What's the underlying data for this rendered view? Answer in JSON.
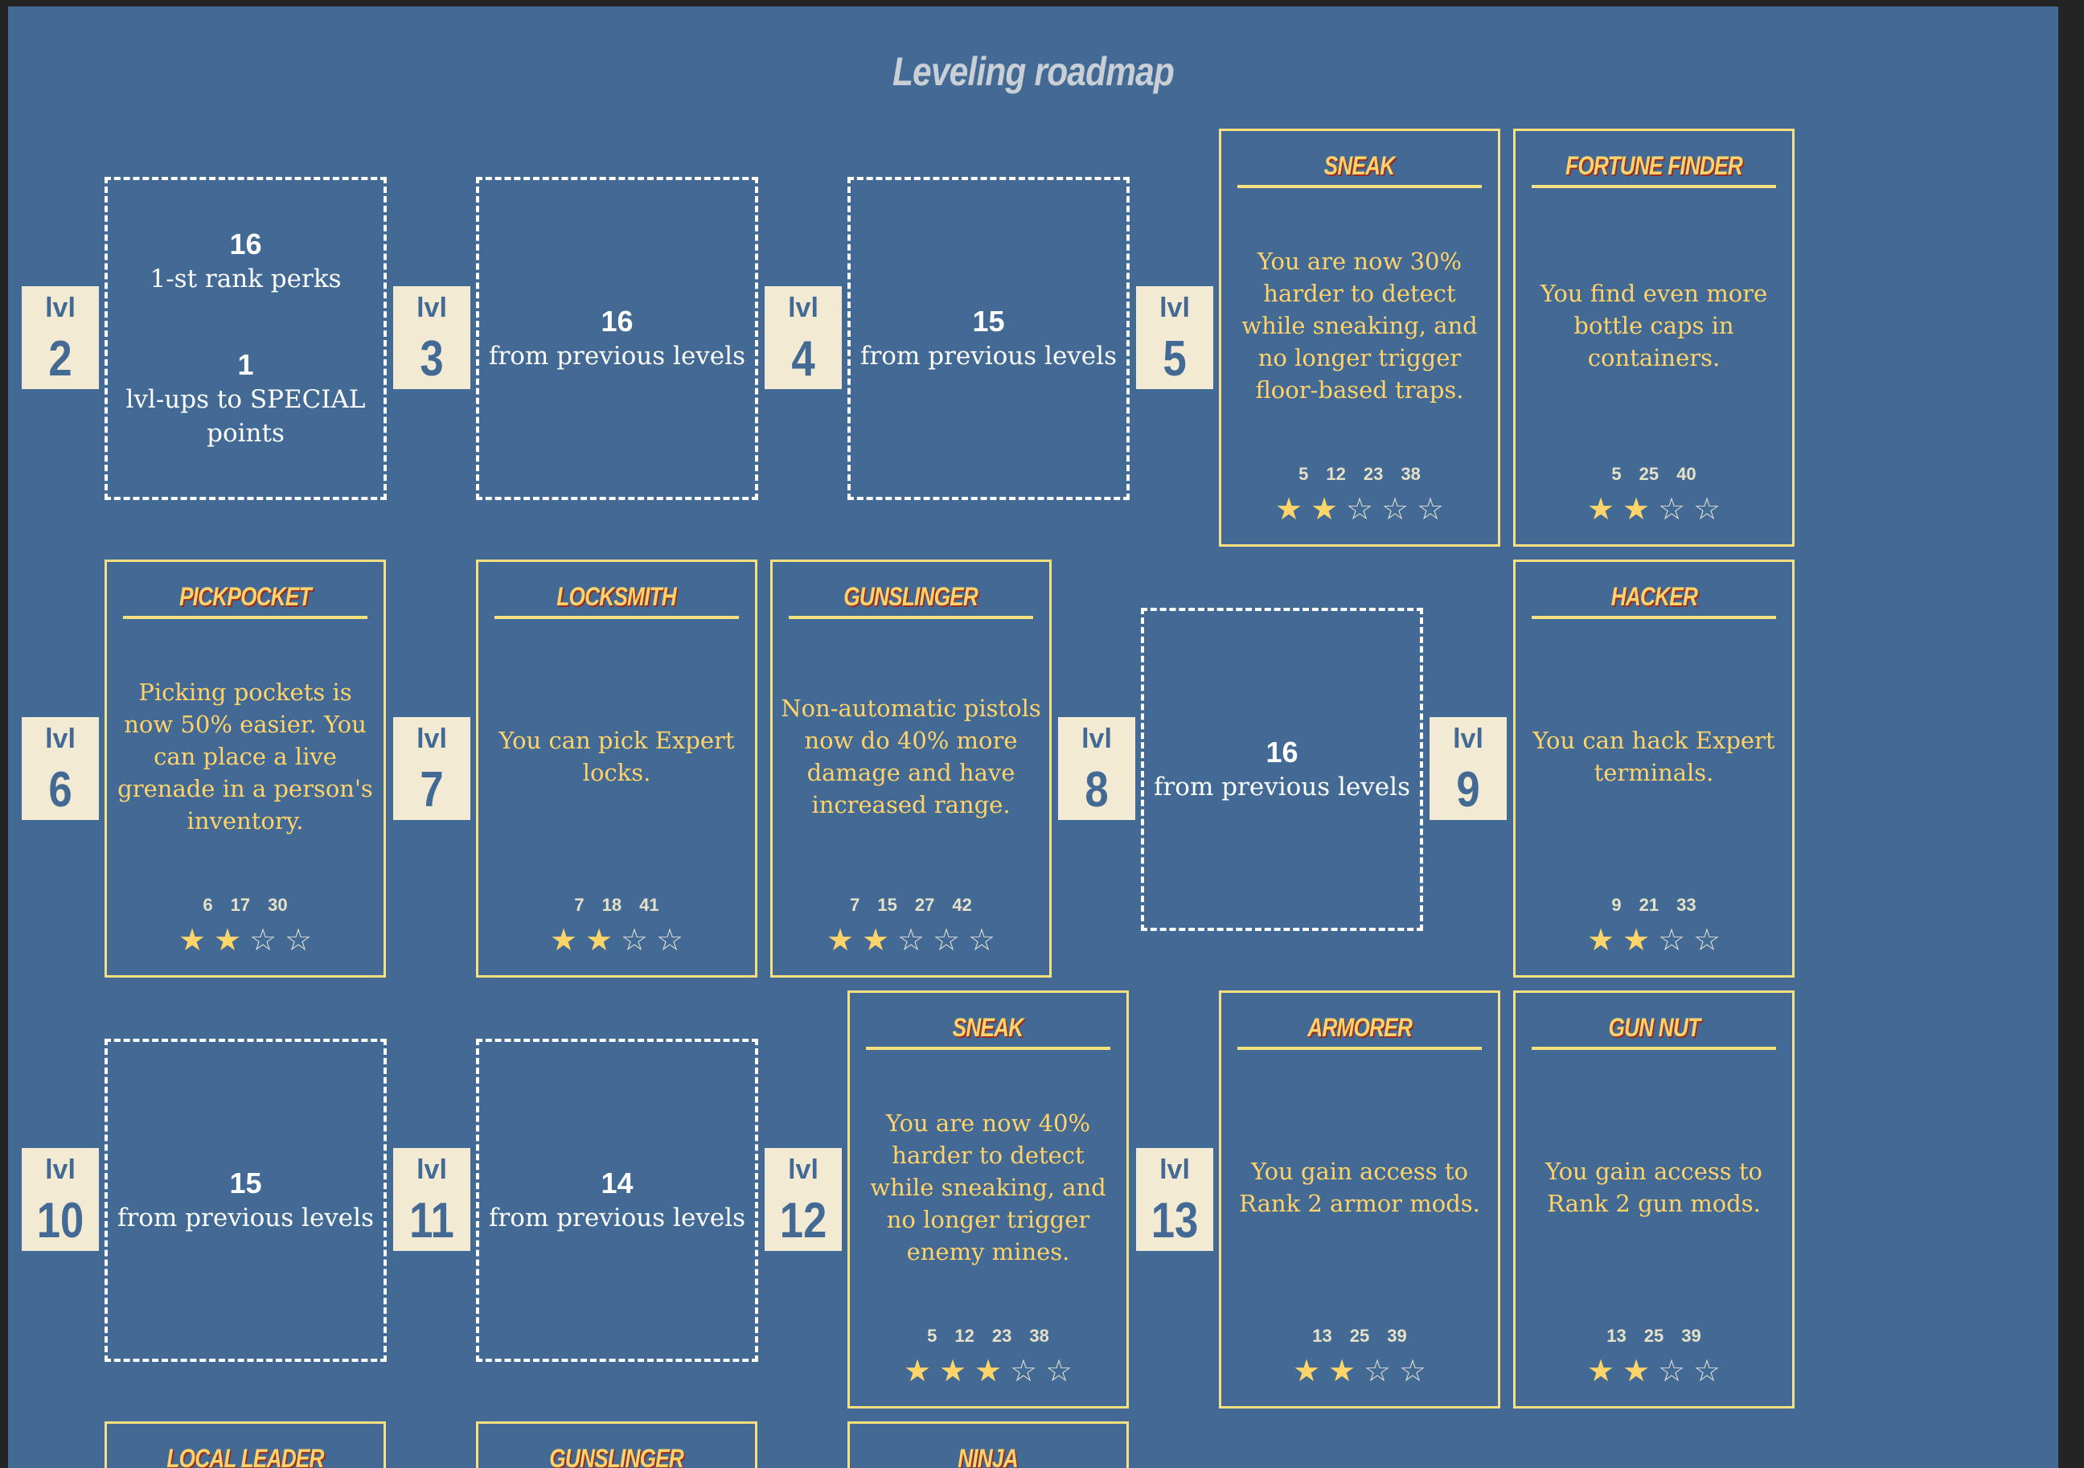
{
  "title": "Leveling roadmap",
  "lvl_text": "lvl",
  "levels": [
    "2",
    "3",
    "4",
    "5",
    "6",
    "7",
    "8",
    "9",
    "10",
    "11",
    "12",
    "13"
  ],
  "placeholders": {
    "p2": {
      "num1": "16",
      "txt1": "1-st rank perks",
      "num2": "1",
      "txt2": "lvl-ups to SPECIAL points"
    },
    "p3": {
      "num": "16",
      "txt": "from previous levels"
    },
    "p4": {
      "num": "15",
      "txt": "from previous levels"
    },
    "p8": {
      "num": "16",
      "txt": "from previous levels"
    },
    "p10": {
      "num": "15",
      "txt": "from previous levels"
    },
    "p11": {
      "num": "14",
      "txt": "from previous levels"
    }
  },
  "perks": {
    "sneak1": {
      "title": "SNEAK",
      "desc": "You are now 30% harder to detect while sneaking, and no longer trigger floor-based traps.",
      "reqs": [
        "5",
        "12",
        "23",
        "38"
      ],
      "rank": 2,
      "max": 5
    },
    "fortune": {
      "title": "FORTUNE FINDER",
      "desc": "You find even more bottle caps in containers.",
      "reqs": [
        "5",
        "25",
        "40"
      ],
      "rank": 2,
      "max": 4
    },
    "pickpocket": {
      "title": "PICKPOCKET",
      "desc": "Picking pockets is now 50% easier. You can place a live grenade in a person's inventory.",
      "reqs": [
        "6",
        "17",
        "30"
      ],
      "rank": 2,
      "max": 4
    },
    "locksmith": {
      "title": "LOCKSMITH",
      "desc": "You can pick Expert locks.",
      "reqs": [
        "7",
        "18",
        "41"
      ],
      "rank": 2,
      "max": 4
    },
    "gunslinger1": {
      "title": "GUNSLINGER",
      "desc": "Non-automatic pistols now do 40% more damage and have increased range.",
      "reqs": [
        "7",
        "15",
        "27",
        "42"
      ],
      "rank": 2,
      "max": 5
    },
    "hacker": {
      "title": "HACKER",
      "desc": "You can hack Expert terminals.",
      "reqs": [
        "9",
        "21",
        "33"
      ],
      "rank": 2,
      "max": 4
    },
    "sneak2": {
      "title": "SNEAK",
      "desc": "You are now 40% harder to detect while sneaking, and no longer trigger enemy mines.",
      "reqs": [
        "5",
        "12",
        "23",
        "38"
      ],
      "rank": 3,
      "max": 5
    },
    "armorer": {
      "title": "ARMORER",
      "desc": "You gain access to Rank 2 armor mods.",
      "reqs": [
        "13",
        "25",
        "39"
      ],
      "rank": 2,
      "max": 4
    },
    "gunnut": {
      "title": "GUN NUT",
      "desc": "You gain access to Rank 2 gun mods.",
      "reqs": [
        "13",
        "25",
        "39"
      ],
      "rank": 2,
      "max": 4
    },
    "localleader": {
      "title": "LOCAL LEADER"
    },
    "gunslinger2": {
      "title": "GUNSLINGER"
    },
    "ninja": {
      "title": "NINJA"
    }
  }
}
